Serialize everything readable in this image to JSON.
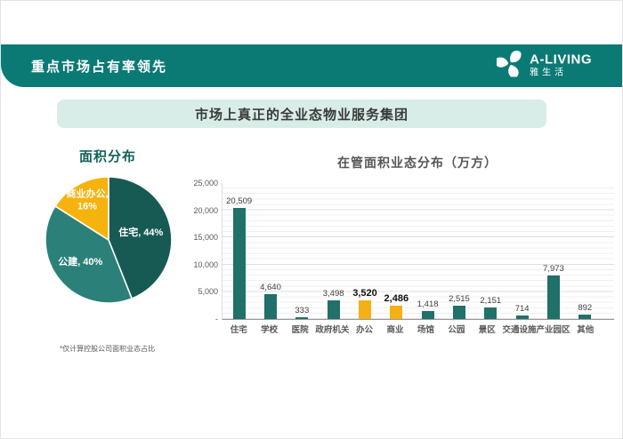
{
  "header": {
    "title": "重点市场占有率领先",
    "logo": {
      "name": "A-LIVING",
      "sub": "雅生活"
    }
  },
  "banner": {
    "text": "市场上真正的全业态物业服务集团"
  },
  "colors": {
    "header_teal": "#0b7a75",
    "banner_mint": "#d9ede8",
    "pie_dark_teal": "#175a54",
    "pie_light_teal": "#2b817a",
    "accent_yellow": "#f5b015",
    "bar_teal": "#21706a"
  },
  "chart_data": [
    {
      "type": "pie",
      "title": "面积分布",
      "labels": [
        "住宅",
        "公建",
        "商业办公"
      ],
      "values": [
        44,
        40,
        16
      ],
      "unit": "%",
      "colors": [
        "#175a54",
        "#2b817a",
        "#f7b30d"
      ],
      "slice_labels": [
        "住宅, 44%",
        "公建, 40%",
        "商业办公, 16%"
      ],
      "footnote": "*仅计算控股公司面积业态占比",
      "legend": "none"
    },
    {
      "type": "bar",
      "title": "在管面积业态分布（万方）",
      "categories": [
        "住宅",
        "学校",
        "医院",
        "政府机关",
        "办公",
        "商业",
        "场馆",
        "公园",
        "景区",
        "交通设施",
        "产业园区",
        "其他"
      ],
      "values": [
        20509,
        4640,
        333,
        3498,
        3520,
        2486,
        1418,
        2515,
        2151,
        714,
        7973,
        892
      ],
      "value_labels": [
        "20,509",
        "4,640",
        "333",
        "3,498",
        "3,520",
        "2,486",
        "1,418",
        "2,515",
        "2,151",
        "714",
        "7,973",
        "892"
      ],
      "highlighted": [
        "办公",
        "商业"
      ],
      "bar_color": "#21706a",
      "highlight_color": "#f5b015",
      "xlabel": "",
      "ylabel": "",
      "ylim": [
        0,
        25000
      ],
      "yticks": [
        "25,000",
        "20,000",
        "15,000",
        "10,000",
        "5,000",
        "-"
      ],
      "grid": true,
      "legend": "none"
    }
  ]
}
